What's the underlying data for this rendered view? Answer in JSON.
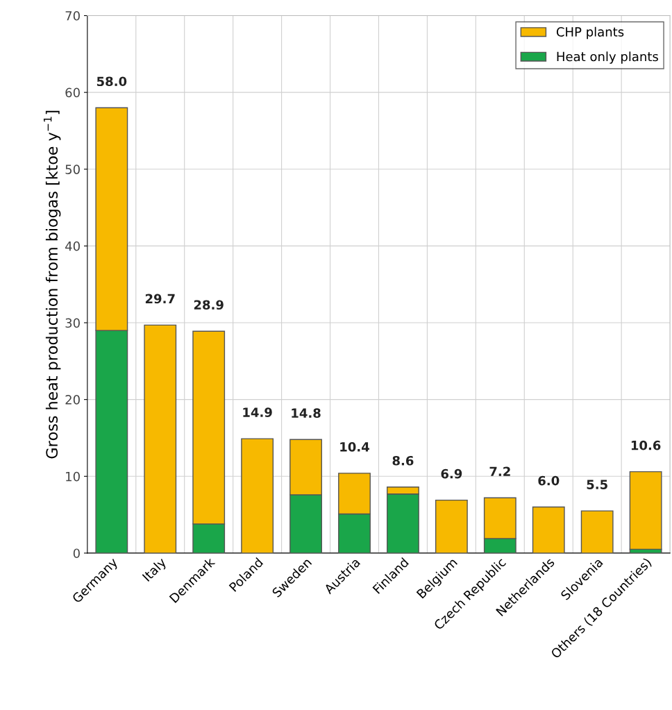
{
  "chart_data": {
    "type": "bar",
    "stacked": true,
    "ylabel": "Gross heat production from biogas [ktoe y$^{−1}$]",
    "categories": [
      "Germany",
      "Italy",
      "Denmark",
      "Poland",
      "Sweden",
      "Austria",
      "Finland",
      "Belgium",
      "Czech Republic",
      "Netherlands",
      "Slovenia",
      "Others (18 Countries)"
    ],
    "series": [
      {
        "name": "Heat only plants",
        "color": "#1aa64a",
        "values": [
          29.0,
          0,
          3.8,
          0,
          7.6,
          5.1,
          7.7,
          0,
          1.9,
          0,
          0,
          0.5
        ]
      },
      {
        "name": "CHP plants",
        "color": "#f7b900",
        "values": [
          29.0,
          29.7,
          25.1,
          14.9,
          7.2,
          5.3,
          0.9,
          6.9,
          5.3,
          6.0,
          5.5,
          10.1
        ]
      }
    ],
    "totals": [
      "58.0",
      "29.7",
      "28.9",
      "14.9",
      "14.8",
      "10.4",
      "8.6",
      "6.9",
      "7.2",
      "6.0",
      "5.5",
      "10.6"
    ],
    "ylim": [
      0,
      70
    ],
    "yticks": [
      0,
      10,
      20,
      30,
      40,
      50,
      60,
      70
    ],
    "grid": true,
    "legend": "top right"
  }
}
